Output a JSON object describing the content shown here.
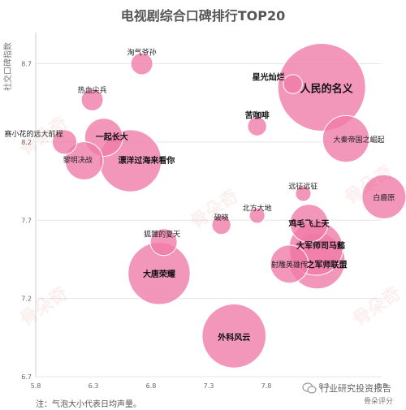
{
  "chart_data": {
    "type": "scatter",
    "title": "电视剧综合口碑排行TOP20",
    "xlabel": "",
    "ylabel": "社交口碑指数",
    "xlim": [
      5.8,
      8.8
    ],
    "ylim": [
      6.7,
      8.9
    ],
    "xticks": [
      "5.8",
      "6.3",
      "6.8",
      "7.3",
      "7.8",
      "8.3",
      "8.8"
    ],
    "yticks": [
      "6.7",
      "7.2",
      "7.7",
      "8.2",
      "8.7"
    ],
    "points": [
      {
        "label": "淘气爷孙",
        "x": 6.72,
        "y": 8.7,
        "size": 4
      },
      {
        "label": "热血尖兵",
        "x": 6.29,
        "y": 8.47,
        "size": 4
      },
      {
        "label": "赛小花的远大前程",
        "x": 6.05,
        "y": 8.2,
        "size": 5
      },
      {
        "label": "一起长大",
        "x": 6.39,
        "y": 8.23,
        "size": 12
      },
      {
        "label": "黎明决战",
        "x": 6.22,
        "y": 8.08,
        "size": 12
      },
      {
        "label": "漂洋过海来看你",
        "x": 6.62,
        "y": 8.08,
        "size": 32
      },
      {
        "label": "人民的名义",
        "x": 8.28,
        "y": 8.55,
        "size": 64
      },
      {
        "label": "星光灿烂",
        "x": 8.03,
        "y": 8.57,
        "size": 3
      },
      {
        "label": "苦咖啡",
        "x": 7.72,
        "y": 8.3,
        "size": 3
      },
      {
        "label": "大秦帝国之崛起",
        "x": 8.49,
        "y": 8.22,
        "size": 18
      },
      {
        "label": "远征远征",
        "x": 8.12,
        "y": 7.87,
        "size": 2
      },
      {
        "label": "北方大地",
        "x": 7.72,
        "y": 7.73,
        "size": 2
      },
      {
        "label": "破晓",
        "x": 7.41,
        "y": 7.67,
        "size": 3
      },
      {
        "label": "白鹿原",
        "x": 8.82,
        "y": 7.85,
        "size": 16
      },
      {
        "label": "鸡毛飞上天",
        "x": 8.17,
        "y": 7.68,
        "size": 12
      },
      {
        "label": "狐狸的夏天",
        "x": 6.91,
        "y": 7.56,
        "size": 6
      },
      {
        "label": "大军师司马懿",
        "x": 8.23,
        "y": 7.52,
        "size": 24
      },
      {
        "label": "射雕英雄传",
        "x": 8.0,
        "y": 7.42,
        "size": 12
      },
      {
        "label": "大军师司马懿之军师联盟",
        "x": 8.24,
        "y": 7.44,
        "size": 26
      },
      {
        "label": "大唐荣耀",
        "x": 6.87,
        "y": 7.36,
        "size": 32
      },
      {
        "label": "外科风云",
        "x": 7.52,
        "y": 6.96,
        "size": 34
      }
    ],
    "label_shown": {
      "淘气爷孙": "淘气爷孙",
      "热血尖兵": "热血尖兵",
      "赛小花的远大前程": "赛小花的远大前程",
      "一起长大": "一起长大",
      "黎明决战": "黎明决战",
      "漂洋过海来看你": "漂洋过海来看你",
      "人民的名义": "人民的名义",
      "星光灿烂": "星光灿烂",
      "苦咖啡": "苦咖啡",
      "大秦帝国之崛起": "大秦帝国之崛起",
      "远征远征": "远征远征",
      "北方大地": "北方大地",
      "破晓": "破晓",
      "白鹿原": "白鹿原",
      "鸡毛飞上天": "鸡毛飞上天",
      "狐狸的夏天": "狐狸的夏天",
      "大军师司马懿": "大军师司马懿",
      "射雕英雄传": "射雕英雄传",
      "大军师司马懿之军师联盟": "之军师联盟",
      "大唐荣耀": "大唐荣耀",
      "外科风云": "外科风云"
    },
    "bubble_color": "#f07aa6"
  },
  "footer": {
    "note": "注：气泡大小代表日均声量。",
    "brand": "行业研究投资报告",
    "source": "骨朵评分"
  },
  "watermark": "骨朵奇"
}
